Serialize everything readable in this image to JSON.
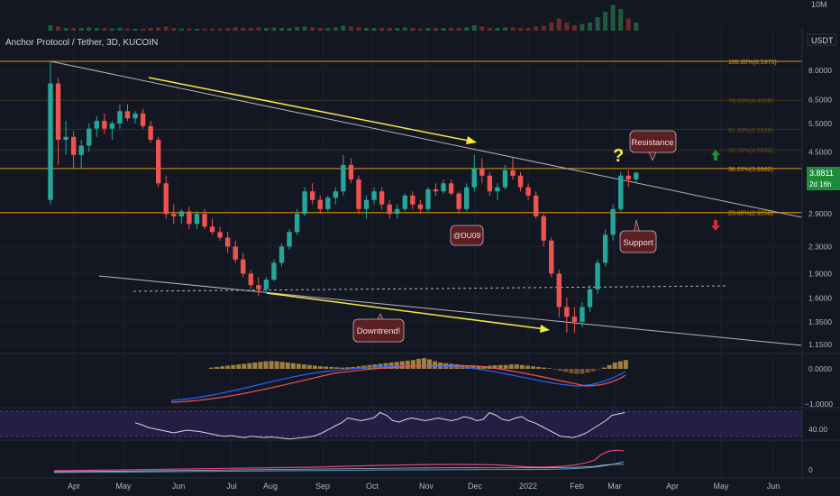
{
  "header": {
    "symbol_title": "Anchor Protocol / Tether, 3D, KUCOIN",
    "currency_badge": "USDT",
    "volume_scale": "10M",
    "last_price": "3.8811",
    "countdown": "2d 16h"
  },
  "colors": {
    "background": "#131722",
    "up": "#26a69a",
    "down": "#ef5350",
    "fib": "#f7a600",
    "arrow": "#f5e94a",
    "label_box": "#5b1f24",
    "price_badge": "#1e8c3a",
    "rsi_band": "#2a1f4a"
  },
  "annotations": {
    "resistance": "Resistance",
    "support": "Support",
    "downtrend": "Downtrend!",
    "author": "@DU09",
    "question": "?"
  },
  "chart_data": {
    "type": "candlestick",
    "scale": "log",
    "x_labels": [
      "Apr",
      "May",
      "Jun",
      "Jul",
      "Aug",
      "Sep",
      "Oct",
      "Nov",
      "Dec",
      "2022",
      "Feb",
      "Mar",
      "Apr",
      "May",
      "Jun"
    ],
    "y_ticks": [
      8.0,
      6.5,
      5.5,
      4.5,
      2.9,
      2.3,
      1.9,
      1.6,
      1.35,
      1.15
    ],
    "fib_levels": [
      {
        "label": "100.00%(8.5375)",
        "value": 8.5375
      },
      {
        "label": "78.60%(6.4808)",
        "value": 6.48
      },
      {
        "label": "61.80%(5.2626)",
        "value": 5.2626
      },
      {
        "label": "50.00%(4.5633)",
        "value": 4.5633
      },
      {
        "label": "38.20%(3.9982)",
        "value": 3.9982
      },
      {
        "label": "23.60%(2.9258)",
        "value": 2.9258
      }
    ],
    "candles": [
      [
        3.2,
        8.5,
        3.1,
        7.3
      ],
      [
        7.3,
        7.6,
        4.1,
        4.9
      ],
      [
        4.9,
        5.6,
        4.4,
        5.0
      ],
      [
        5.0,
        5.2,
        4.0,
        4.4
      ],
      [
        4.4,
        4.9,
        4.0,
        4.7
      ],
      [
        4.7,
        5.5,
        4.5,
        5.3
      ],
      [
        5.3,
        5.8,
        5.0,
        5.6
      ],
      [
        5.6,
        5.9,
        5.1,
        5.3
      ],
      [
        5.3,
        5.6,
        4.9,
        5.5
      ],
      [
        5.5,
        6.3,
        5.3,
        6.0
      ],
      [
        6.0,
        6.3,
        5.6,
        5.7
      ],
      [
        5.7,
        6.0,
        5.5,
        5.9
      ],
      [
        5.9,
        6.1,
        5.3,
        5.4
      ],
      [
        5.4,
        5.6,
        4.8,
        4.9
      ],
      [
        4.9,
        5.0,
        3.5,
        3.6
      ],
      [
        3.6,
        3.8,
        2.8,
        2.9
      ],
      [
        2.9,
        3.1,
        2.7,
        2.85
      ],
      [
        2.85,
        3.0,
        2.7,
        2.95
      ],
      [
        2.95,
        3.05,
        2.6,
        2.7
      ],
      [
        2.7,
        2.95,
        2.6,
        2.9
      ],
      [
        2.9,
        3.0,
        2.6,
        2.65
      ],
      [
        2.65,
        2.8,
        2.5,
        2.55
      ],
      [
        2.55,
        2.65,
        2.4,
        2.45
      ],
      [
        2.45,
        2.55,
        2.2,
        2.3
      ],
      [
        2.3,
        2.4,
        2.05,
        2.1
      ],
      [
        2.1,
        2.2,
        1.85,
        1.9
      ],
      [
        1.9,
        1.95,
        1.7,
        1.75
      ],
      [
        1.75,
        1.85,
        1.62,
        1.7
      ],
      [
        1.7,
        1.85,
        1.65,
        1.82
      ],
      [
        1.82,
        2.1,
        1.8,
        2.05
      ],
      [
        2.05,
        2.35,
        2.0,
        2.3
      ],
      [
        2.3,
        2.6,
        2.25,
        2.55
      ],
      [
        2.55,
        3.0,
        2.5,
        2.9
      ],
      [
        2.9,
        3.5,
        2.85,
        3.4
      ],
      [
        3.4,
        3.6,
        3.1,
        3.2
      ],
      [
        3.2,
        3.3,
        2.9,
        3.0
      ],
      [
        3.0,
        3.3,
        2.95,
        3.25
      ],
      [
        3.25,
        3.5,
        3.1,
        3.4
      ],
      [
        3.4,
        4.4,
        3.3,
        4.1
      ],
      [
        4.1,
        4.3,
        3.6,
        3.7
      ],
      [
        3.7,
        3.8,
        2.9,
        3.0
      ],
      [
        3.0,
        3.3,
        2.8,
        3.2
      ],
      [
        3.2,
        3.5,
        3.1,
        3.4
      ],
      [
        3.4,
        3.5,
        3.0,
        3.1
      ],
      [
        3.1,
        3.2,
        2.8,
        2.9
      ],
      [
        2.9,
        3.1,
        2.8,
        3.0
      ],
      [
        3.0,
        3.35,
        2.95,
        3.3
      ],
      [
        3.3,
        3.4,
        3.0,
        3.1
      ],
      [
        3.1,
        3.2,
        2.9,
        3.0
      ],
      [
        3.0,
        3.5,
        2.95,
        3.45
      ],
      [
        3.45,
        3.6,
        3.3,
        3.4
      ],
      [
        3.4,
        3.7,
        3.35,
        3.6
      ],
      [
        3.6,
        3.7,
        3.3,
        3.35
      ],
      [
        3.35,
        3.4,
        2.9,
        3.0
      ],
      [
        3.0,
        3.6,
        2.95,
        3.5
      ],
      [
        3.5,
        4.4,
        3.4,
        4.0
      ],
      [
        4.0,
        4.3,
        3.6,
        3.8
      ],
      [
        3.8,
        3.9,
        3.3,
        3.4
      ],
      [
        3.4,
        3.6,
        3.2,
        3.5
      ],
      [
        3.5,
        4.1,
        3.45,
        3.95
      ],
      [
        3.95,
        4.3,
        3.7,
        3.8
      ],
      [
        3.8,
        3.9,
        3.4,
        3.5
      ],
      [
        3.5,
        3.6,
        3.2,
        3.3
      ],
      [
        3.3,
        3.4,
        2.8,
        2.85
      ],
      [
        2.85,
        2.9,
        2.3,
        2.4
      ],
      [
        2.4,
        2.45,
        1.85,
        1.9
      ],
      [
        1.9,
        1.95,
        1.4,
        1.5
      ],
      [
        1.5,
        1.6,
        1.25,
        1.4
      ],
      [
        1.4,
        1.5,
        1.25,
        1.35
      ],
      [
        1.35,
        1.55,
        1.3,
        1.5
      ],
      [
        1.5,
        1.75,
        1.45,
        1.7
      ],
      [
        1.7,
        2.1,
        1.65,
        2.05
      ],
      [
        2.05,
        2.6,
        2.0,
        2.5
      ],
      [
        2.5,
        3.1,
        2.4,
        3.0
      ],
      [
        3.0,
        3.9,
        2.95,
        3.8
      ],
      [
        3.8,
        3.95,
        3.5,
        3.7
      ],
      [
        3.7,
        3.9,
        3.6,
        3.88
      ]
    ],
    "volume": [
      0.2,
      0.15,
      0.1,
      0.1,
      0.1,
      0.12,
      0.1,
      0.1,
      0.08,
      0.1,
      0.08,
      0.07,
      0.07,
      0.1,
      0.12,
      0.15,
      0.1,
      0.08,
      0.08,
      0.07,
      0.07,
      0.08,
      0.08,
      0.1,
      0.12,
      0.1,
      0.1,
      0.12,
      0.1,
      0.12,
      0.1,
      0.1,
      0.14,
      0.15,
      0.12,
      0.1,
      0.1,
      0.12,
      0.18,
      0.16,
      0.12,
      0.1,
      0.1,
      0.1,
      0.1,
      0.1,
      0.12,
      0.1,
      0.08,
      0.1,
      0.1,
      0.1,
      0.1,
      0.1,
      0.12,
      0.2,
      0.15,
      0.1,
      0.1,
      0.12,
      0.12,
      0.1,
      0.1,
      0.15,
      0.18,
      0.3,
      0.45,
      0.3,
      0.2,
      0.25,
      0.3,
      0.5,
      0.7,
      0.95,
      0.8,
      0.45,
      0.3
    ],
    "macd_hist": [
      0.1,
      0.15,
      0.2,
      0.25,
      0.3,
      0.35,
      0.4,
      0.45,
      0.5,
      0.55,
      0.6,
      0.62,
      0.6,
      0.55,
      0.5,
      0.45,
      0.4,
      0.35,
      0.3,
      0.25,
      0.2,
      0.18,
      0.15,
      0.12,
      0.1,
      0.12,
      0.15,
      0.2,
      0.25,
      0.3,
      0.35,
      0.4,
      0.45,
      0.5,
      0.55,
      0.6,
      0.65,
      0.7,
      0.8,
      0.85,
      0.75,
      0.6,
      0.5,
      0.45,
      0.4,
      0.35,
      0.3,
      0.25,
      0.2,
      0.2,
      0.22,
      0.25,
      0.28,
      0.3,
      0.3,
      0.35,
      0.35,
      0.3,
      0.25,
      0.2,
      0.15,
      0.1,
      0.05,
      -0.05,
      -0.15,
      -0.25,
      -0.35,
      -0.4,
      -0.38,
      -0.3,
      -0.2,
      -0.05,
      0.1,
      0.3,
      0.5,
      0.6,
      0.7
    ],
    "rsi": [
      55,
      52,
      48,
      46,
      44,
      42,
      40,
      42,
      44,
      43,
      42,
      40,
      38,
      36,
      35,
      36,
      34,
      33,
      35,
      34,
      33,
      34,
      33,
      32,
      31,
      32,
      33,
      34,
      36,
      40,
      45,
      50,
      55,
      62,
      60,
      58,
      60,
      62,
      70,
      66,
      58,
      56,
      60,
      62,
      60,
      58,
      60,
      62,
      60,
      58,
      60,
      64,
      62,
      58,
      60,
      70,
      66,
      60,
      58,
      62,
      64,
      58,
      55,
      50,
      45,
      40,
      35,
      34,
      33,
      36,
      40,
      46,
      52,
      58,
      66,
      68,
      70
    ],
    "rsi_level": "40.00",
    "macd_level": "0.0000",
    "macd_neg": "−1.0000",
    "adx_level": "0"
  }
}
